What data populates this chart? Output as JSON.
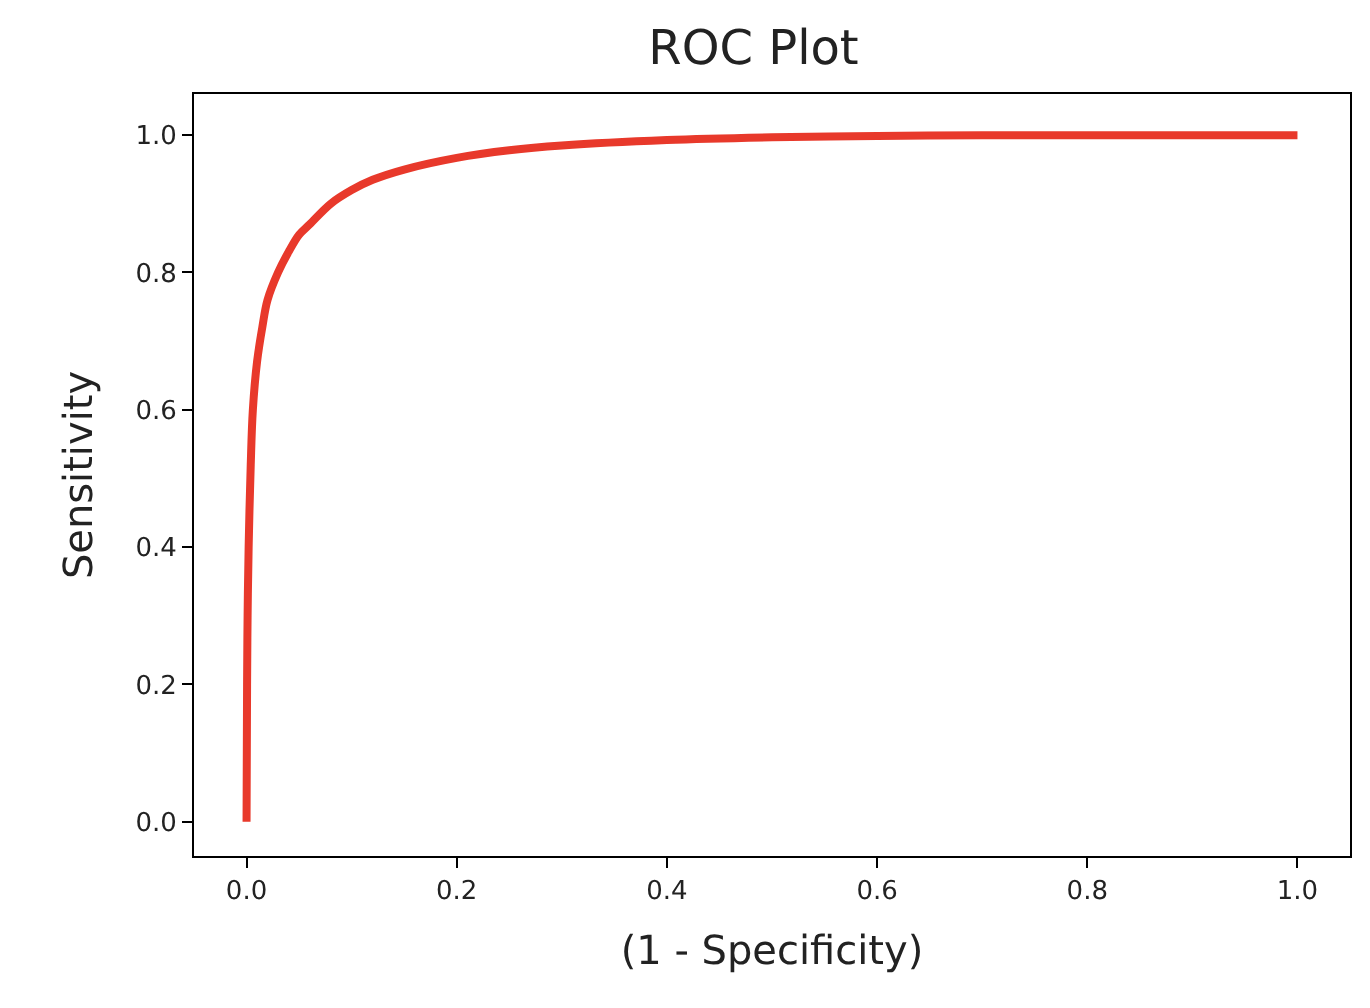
{
  "chart_data": {
    "type": "line",
    "title": "ROC Plot",
    "xlabel": "(1 - Specificity)",
    "ylabel": "Sensitivity",
    "x": [
      0,
      0.0005,
      0.001,
      0.002,
      0.004,
      0.006,
      0.01,
      0.015,
      0.02,
      0.03,
      0.04,
      0.05,
      0.06,
      0.08,
      0.1,
      0.12,
      0.15,
      0.2,
      0.25,
      0.3,
      0.4,
      0.5,
      0.6,
      0.7,
      0.8,
      0.9,
      1.0
    ],
    "series": [
      {
        "color": "#e8392b",
        "values": [
          0,
          0.2,
          0.3,
          0.4,
          0.52,
          0.6,
          0.67,
          0.72,
          0.76,
          0.8,
          0.83,
          0.855,
          0.87,
          0.9,
          0.92,
          0.935,
          0.95,
          0.967,
          0.978,
          0.985,
          0.993,
          0.997,
          0.999,
          1,
          1,
          1,
          1
        ]
      }
    ],
    "xlim": [
      -0.05,
      1.05
    ],
    "ylim": [
      -0.05,
      1.06
    ],
    "xticks": [
      {
        "value": 0,
        "label": "0.0"
      },
      {
        "value": 0.2,
        "label": "0.2"
      },
      {
        "value": 0.4,
        "label": "0.4"
      },
      {
        "value": 0.6,
        "label": "0.6"
      },
      {
        "value": 0.8,
        "label": "0.8"
      },
      {
        "value": 1,
        "label": "1.0"
      }
    ],
    "yticks": [
      {
        "value": 0,
        "label": "0.0"
      },
      {
        "value": 0.2,
        "label": "0.2"
      },
      {
        "value": 0.4,
        "label": "0.4"
      },
      {
        "value": 0.6,
        "label": "0.6"
      },
      {
        "value": 0.8,
        "label": "0.8"
      },
      {
        "value": 1,
        "label": "1.0"
      }
    ],
    "marker": "none",
    "line_style": "solid"
  }
}
